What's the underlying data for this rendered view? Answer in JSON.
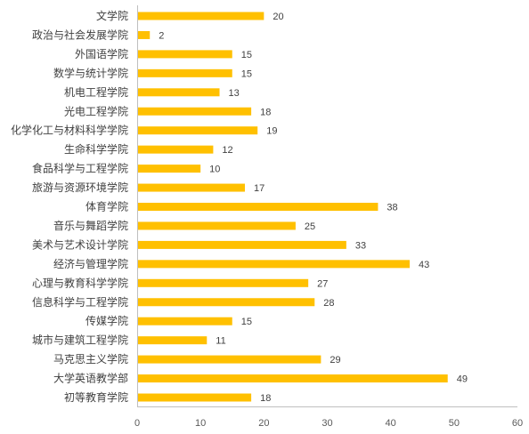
{
  "chart_data": {
    "type": "bar",
    "orientation": "horizontal",
    "title": "",
    "xlabel": "",
    "ylabel": "",
    "xlim": [
      0,
      60
    ],
    "x_ticks": [
      0,
      10,
      20,
      30,
      40,
      50,
      60
    ],
    "grid": false,
    "legend": "none",
    "bar_color": "#FFC000",
    "categories": [
      "文学院",
      "政治与社会发展学院",
      "外国语学院",
      "数学与统计学院",
      "机电工程学院",
      "光电工程学院",
      "化学化工与材料科学学院",
      "生命科学学院",
      "食品科学与工程学院",
      "旅游与资源环境学院",
      "体育学院",
      "音乐与舞蹈学院",
      "美术与艺术设计学院",
      "经济与管理学院",
      "心理与教育科学学院",
      "信息科学与工程学院",
      "传媒学院",
      "城市与建筑工程学院",
      "马克思主义学院",
      "大学英语教学部",
      "初等教育学院"
    ],
    "values": [
      20,
      2,
      15,
      15,
      13,
      18,
      19,
      12,
      10,
      17,
      38,
      25,
      33,
      43,
      27,
      28,
      15,
      11,
      29,
      49,
      18
    ]
  }
}
